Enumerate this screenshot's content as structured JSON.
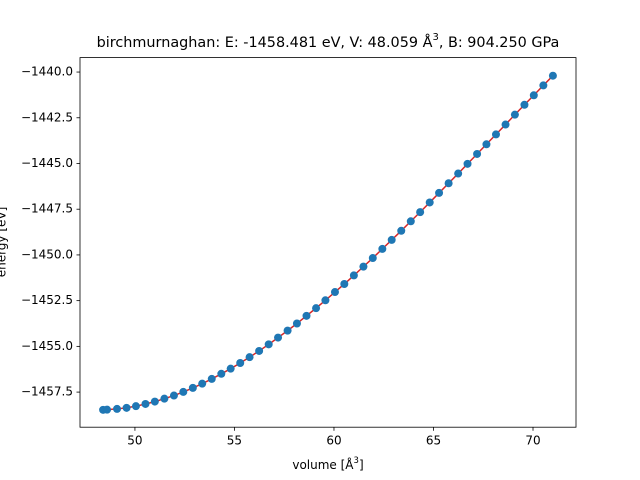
{
  "chart_data": {
    "type": "line",
    "title": "birchmurnaghan: E: -1458.481 eV, V: 48.059 Å",
    "title_superscript": "3",
    "title_end": ", B: 904.250 GPa",
    "x_label": "volume [Å",
    "x_label_superscript": "3",
    "x_label_end": "]",
    "y_label": "energy [eV]",
    "xlim": [
      47.24,
      72.16
    ],
    "ylim": [
      -1459.42,
      -1439.21
    ],
    "xticks": [
      50,
      55,
      60,
      65,
      70
    ],
    "yticks": [
      {
        "value": -1440.0,
        "label": "−1440.0"
      },
      {
        "value": -1442.5,
        "label": "−1442.5"
      },
      {
        "value": -1445.0,
        "label": "−1445.0"
      },
      {
        "value": -1447.5,
        "label": "−1447.5"
      },
      {
        "value": -1450.0,
        "label": "−1450.0"
      },
      {
        "value": -1452.5,
        "label": "−1452.5"
      },
      {
        "value": -1455.0,
        "label": "−1455.0"
      },
      {
        "value": -1457.5,
        "label": "−1457.5"
      }
    ],
    "x": [
      48.4,
      48.6,
      49.1,
      49.58,
      50.05,
      50.53,
      51.0,
      51.48,
      51.96,
      52.43,
      52.91,
      53.38,
      53.86,
      54.34,
      54.81,
      55.29,
      55.76,
      56.24,
      56.72,
      57.19,
      57.67,
      58.14,
      58.62,
      59.1,
      59.57,
      60.05,
      60.52,
      61.0,
      61.48,
      61.95,
      62.43,
      62.9,
      63.38,
      63.86,
      64.33,
      64.81,
      65.28,
      65.76,
      66.24,
      66.71,
      67.19,
      67.66,
      68.14,
      68.62,
      69.09,
      69.57,
      70.04,
      70.52,
      71.0
    ],
    "series": [
      {
        "mode": "line",
        "color": "#d62728",
        "values": [
          -1458.47,
          -1458.46,
          -1458.42,
          -1458.36,
          -1458.27,
          -1458.15,
          -1458.02,
          -1457.86,
          -1457.69,
          -1457.49,
          -1457.27,
          -1457.04,
          -1456.78,
          -1456.5,
          -1456.22,
          -1455.91,
          -1455.59,
          -1455.25,
          -1454.89,
          -1454.52,
          -1454.14,
          -1453.75,
          -1453.33,
          -1452.91,
          -1452.48,
          -1452.03,
          -1451.59,
          -1451.12,
          -1450.64,
          -1450.17,
          -1449.67,
          -1449.18,
          -1448.68,
          -1448.16,
          -1447.66,
          -1447.13,
          -1446.61,
          -1446.08,
          -1445.55,
          -1445.02,
          -1444.48,
          -1443.95,
          -1443.41,
          -1442.87,
          -1442.33,
          -1441.79,
          -1441.27,
          -1440.73,
          -1440.2
        ]
      },
      {
        "mode": "markers",
        "color": "#1f77b4",
        "values": [
          -1458.47,
          -1458.46,
          -1458.42,
          -1458.36,
          -1458.27,
          -1458.15,
          -1458.02,
          -1457.86,
          -1457.69,
          -1457.49,
          -1457.27,
          -1457.04,
          -1456.78,
          -1456.5,
          -1456.22,
          -1455.91,
          -1455.59,
          -1455.25,
          -1454.89,
          -1454.52,
          -1454.14,
          -1453.75,
          -1453.33,
          -1452.91,
          -1452.48,
          -1452.03,
          -1451.59,
          -1451.12,
          -1450.64,
          -1450.17,
          -1449.67,
          -1449.18,
          -1448.68,
          -1448.16,
          -1447.66,
          -1447.13,
          -1446.61,
          -1446.08,
          -1445.55,
          -1445.02,
          -1444.48,
          -1443.95,
          -1443.41,
          -1442.87,
          -1442.33,
          -1441.79,
          -1441.27,
          -1440.73,
          -1440.2
        ]
      }
    ]
  }
}
